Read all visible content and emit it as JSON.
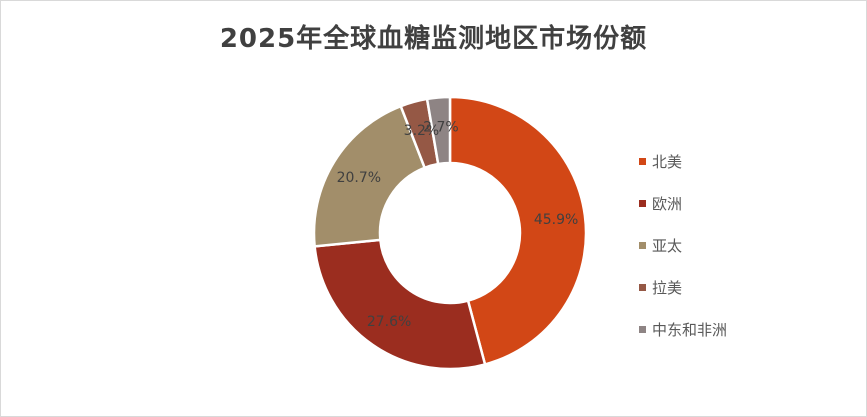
{
  "chart_data": {
    "type": "pie",
    "subtype": "donut",
    "title": "2025年全球血糖监测地区市场份额",
    "categories": [
      "北美",
      "欧洲",
      "亚太",
      "拉美",
      "中东和非洲"
    ],
    "values": [
      45.9,
      27.6,
      20.7,
      3.2,
      2.7
    ],
    "unit": "%",
    "data_labels": [
      "45.9%",
      "27.6%",
      "20.7%",
      "3.2%",
      "2.7%"
    ],
    "colors": [
      "#D24716",
      "#9B2D1F",
      "#A28E6A",
      "#955845",
      "#8E8484"
    ],
    "legend_position": "right",
    "start_angle_deg": 0,
    "direction": "clockwise"
  }
}
